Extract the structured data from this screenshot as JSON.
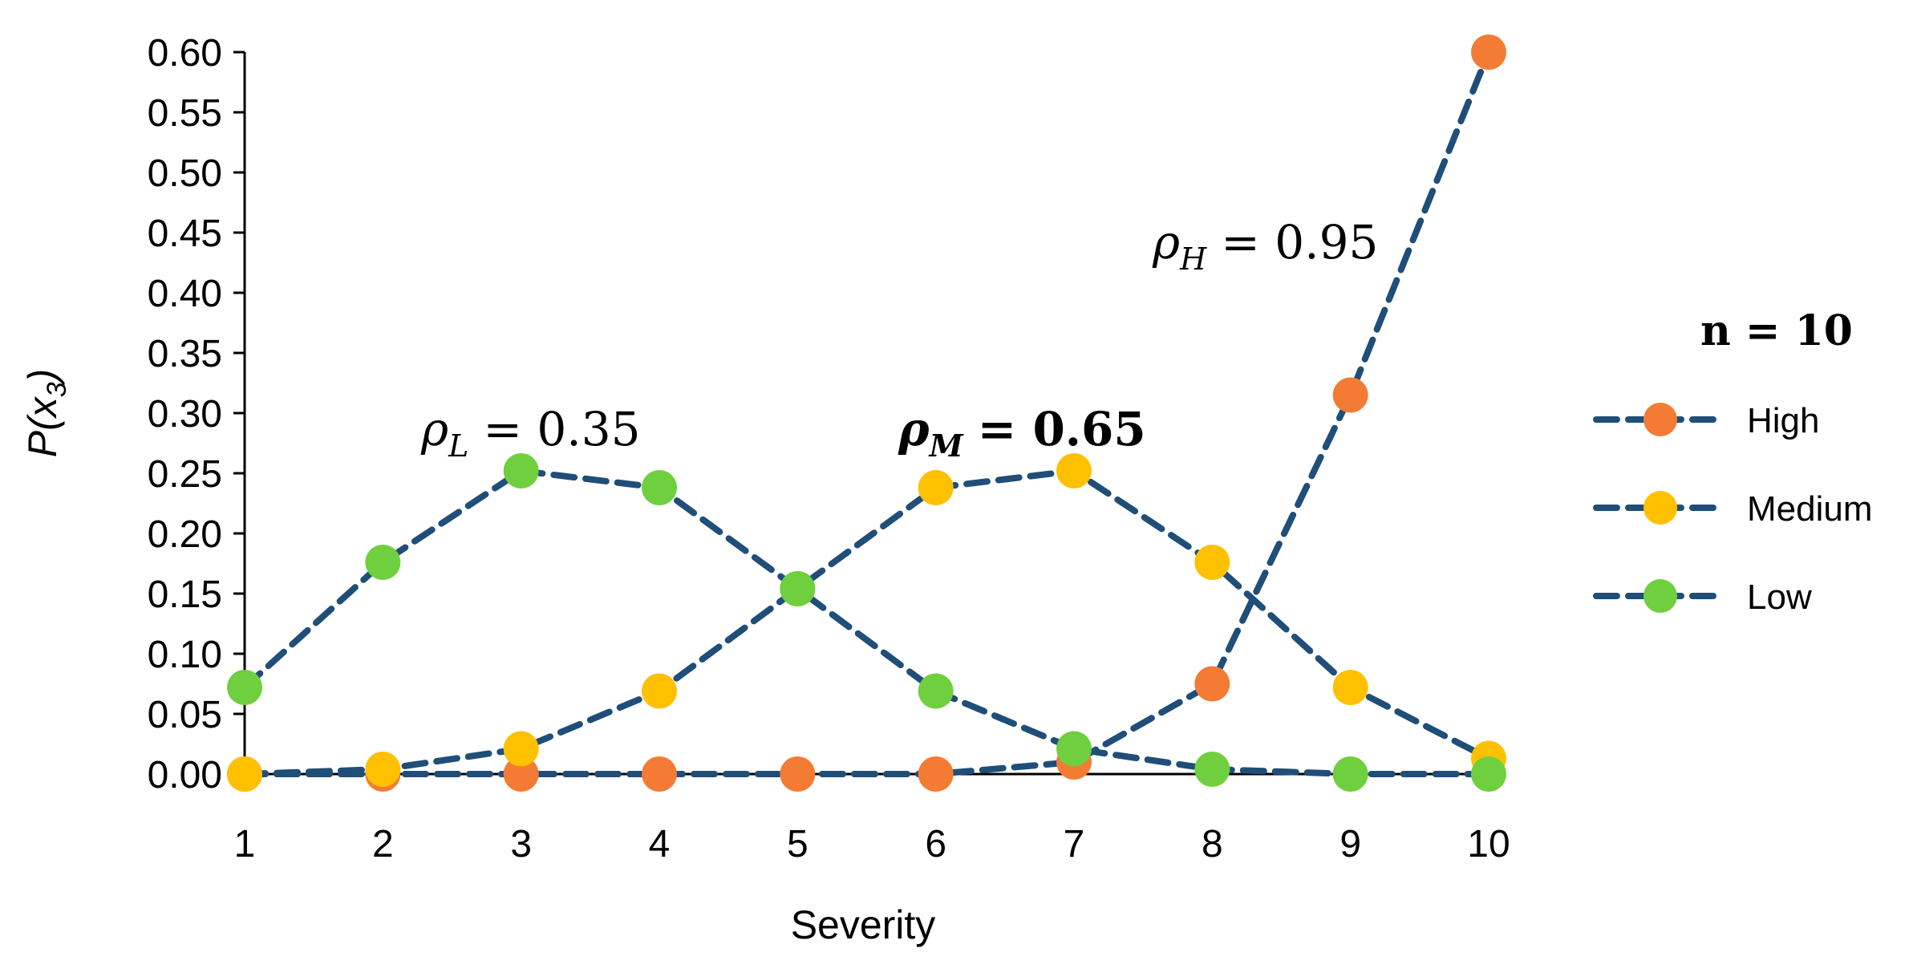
{
  "chart_data": {
    "type": "line",
    "xlabel": "Severity",
    "ylabel": "P(x",
    "ylabel_sub": "3",
    "ylabel_close": ")",
    "x": [
      1,
      2,
      3,
      4,
      5,
      6,
      7,
      8,
      9,
      10
    ],
    "xlim": [
      1,
      10
    ],
    "ylim": [
      0,
      0.6
    ],
    "yticks": [
      "0.00",
      "0.05",
      "0.10",
      "0.15",
      "0.20",
      "0.25",
      "0.30",
      "0.35",
      "0.40",
      "0.45",
      "0.50",
      "0.55",
      "0.60"
    ],
    "ytick_values": [
      0,
      0.05,
      0.1,
      0.15,
      0.2,
      0.25,
      0.3,
      0.35,
      0.4,
      0.45,
      0.5,
      0.55,
      0.6
    ],
    "xticks": [
      "1",
      "2",
      "3",
      "4",
      "5",
      "6",
      "7",
      "8",
      "9",
      "10"
    ],
    "line_color": "#1F4E79",
    "line_style": "dashed",
    "grid": false,
    "legend_placement": "right",
    "legend_title": "n = 10",
    "series": [
      {
        "name": "High",
        "color": "#F47B34",
        "values": [
          0.0,
          0.0,
          0.0,
          0.0,
          0.0,
          0.0,
          0.01,
          0.075,
          0.315,
          0.6
        ]
      },
      {
        "name": "Medium",
        "color": "#FFC000",
        "values": [
          0.0,
          0.004,
          0.021,
          0.069,
          0.154,
          0.238,
          0.252,
          0.176,
          0.072,
          0.013
        ]
      },
      {
        "name": "Low",
        "color": "#6FCF3F",
        "values": [
          0.072,
          0.176,
          0.252,
          0.238,
          0.154,
          0.069,
          0.021,
          0.004,
          0.0,
          0.0
        ]
      }
    ],
    "annotations": [
      {
        "symbol": "ρ",
        "sub": "L",
        "text": "= 0.35",
        "near_series": "Low",
        "bold": false
      },
      {
        "symbol": "ρ",
        "sub": "M",
        "text": "= 0.65",
        "near_series": "Medium",
        "bold": true
      },
      {
        "symbol": "ρ",
        "sub": "H",
        "text": "= 0.95",
        "near_series": "High",
        "bold": false
      }
    ]
  }
}
